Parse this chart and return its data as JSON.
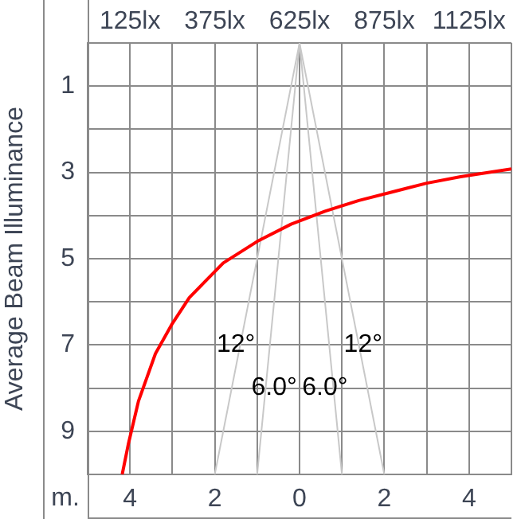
{
  "chart_data": {
    "type": "line",
    "ylabel": "Average Beam Illuminance",
    "xlabel": "m.",
    "xlim": [
      -5,
      5
    ],
    "xticks": [
      {
        "value": -5,
        "label": null
      },
      {
        "value": -4,
        "label": "4"
      },
      {
        "value": -3,
        "label": null
      },
      {
        "value": -2,
        "label": "2"
      },
      {
        "value": -1,
        "label": null
      },
      0,
      {
        "value": 1,
        "label": null
      },
      2,
      {
        "value": 3,
        "label": null
      },
      4,
      {
        "value": 5,
        "label": null
      }
    ],
    "x2lim": [
      0,
      1250
    ],
    "x2ticks": [
      {
        "value": 125,
        "label": "125lx"
      },
      {
        "value": 375,
        "label": "375lx"
      },
      {
        "value": 625,
        "label": "625lx"
      },
      {
        "value": 875,
        "label": "875lx"
      },
      {
        "value": 1125,
        "label": "1125lx"
      }
    ],
    "ylim": [
      10,
      0
    ],
    "yticks": [
      {
        "value": 0,
        "label": null
      },
      1,
      {
        "value": 2,
        "label": null
      },
      3,
      {
        "value": 4,
        "label": null
      },
      5,
      {
        "value": 6,
        "label": null
      },
      7,
      {
        "value": 8,
        "label": null
      },
      9,
      {
        "value": 10,
        "label": null
      }
    ],
    "grid": true,
    "legend": false,
    "marker": "none",
    "series": [
      {
        "color": "#ff0000",
        "axis": "x2",
        "x": [
          1250,
          1100,
          1000,
          900,
          800,
          700,
          600,
          500,
          400,
          300,
          250,
          200,
          150,
          120,
          102
        ],
        "values": [
          2.92,
          3.1,
          3.25,
          3.45,
          3.65,
          3.9,
          4.2,
          4.6,
          5.1,
          5.9,
          6.5,
          7.2,
          8.3,
          9.3,
          10
        ]
      },
      {
        "color": "#c8c8c8",
        "x": [
          0,
          -2
        ],
        "values": [
          0,
          10
        ]
      },
      {
        "color": "#c8c8c8",
        "x": [
          0,
          -1
        ],
        "values": [
          0,
          10
        ]
      },
      {
        "color": "#c8c8c8",
        "x": [
          0,
          1
        ],
        "values": [
          0,
          10
        ]
      },
      {
        "color": "#c8c8c8",
        "x": [
          0,
          2
        ],
        "values": [
          0,
          10
        ]
      }
    ],
    "annotations": [
      {
        "text": "12°",
        "x": -1.5,
        "y": 7
      },
      {
        "text": "12°",
        "x": 1.5,
        "y": 7
      },
      {
        "text": "6.0°",
        "x": -0.6,
        "y": 8
      },
      {
        "text": "6.0°",
        "x": 0.6,
        "y": 8
      }
    ]
  }
}
